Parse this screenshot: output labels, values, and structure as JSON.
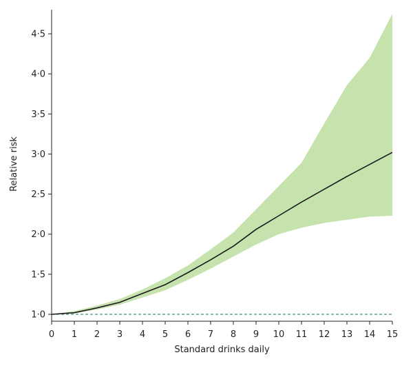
{
  "chart_data": {
    "type": "line",
    "xlabel": "Standard drinks daily",
    "ylabel": "Relative risk",
    "xlim": [
      0,
      15
    ],
    "ylim": [
      1.0,
      4.75
    ],
    "grid": false,
    "x_ticks": [
      0,
      1,
      2,
      3,
      4,
      5,
      6,
      7,
      8,
      9,
      10,
      11,
      12,
      13,
      14,
      15
    ],
    "x_tick_labels": [
      "0",
      "1",
      "2",
      "3",
      "4",
      "5",
      "6",
      "7",
      "8",
      "9",
      "10",
      "11",
      "12",
      "13",
      "14",
      "15"
    ],
    "y_ticks": [
      1.0,
      1.5,
      2.0,
      2.5,
      3.0,
      3.5,
      4.0,
      4.5
    ],
    "y_tick_labels": [
      "1·0",
      "1·5",
      "2·0",
      "2·5",
      "3·0",
      "3·5",
      "4·0",
      "4·5"
    ],
    "reference_line": {
      "y": 1.0,
      "style": "dashed",
      "color": "#4a8f84"
    },
    "line_color": "#1a1a1a",
    "band_color": "#c6e2ad",
    "series": [
      {
        "x": [
          0,
          1,
          2,
          3,
          4,
          5,
          6,
          7,
          8,
          9,
          10,
          11,
          12,
          13,
          14,
          15
        ],
        "values": [
          1.0,
          1.02,
          1.08,
          1.15,
          1.26,
          1.37,
          1.52,
          1.68,
          1.85,
          2.06,
          2.23,
          2.4,
          2.56,
          2.72,
          2.87,
          3.02
        ],
        "lower": [
          1.0,
          1.01,
          1.06,
          1.12,
          1.21,
          1.3,
          1.43,
          1.57,
          1.72,
          1.87,
          2.0,
          2.08,
          2.14,
          2.18,
          2.22,
          2.23
        ],
        "upper": [
          1.0,
          1.04,
          1.11,
          1.19,
          1.31,
          1.45,
          1.61,
          1.81,
          2.02,
          2.31,
          2.6,
          2.89,
          3.38,
          3.86,
          4.2,
          4.75
        ]
      }
    ]
  }
}
